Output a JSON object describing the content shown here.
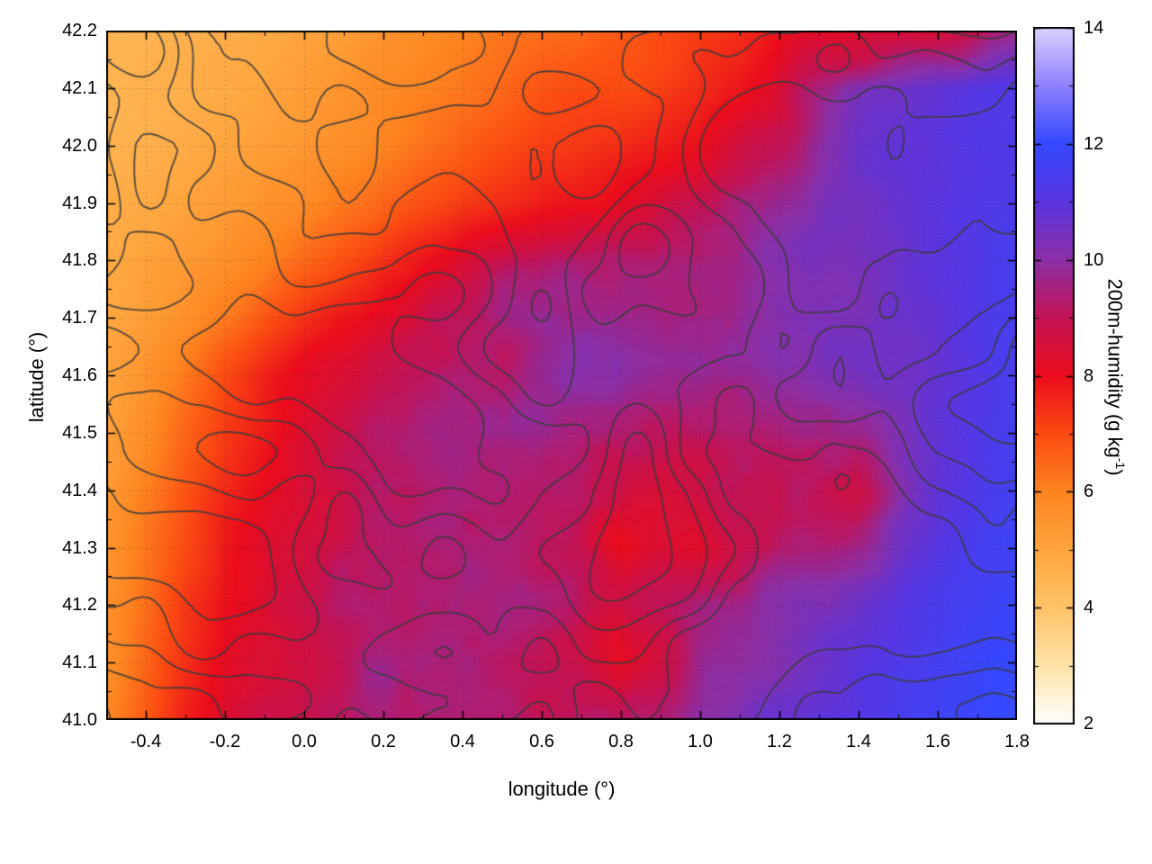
{
  "chart_data": {
    "type": "heatmap",
    "title": "",
    "xlabel": "longitude (°)",
    "ylabel": "latitude (°)",
    "colorbar_label_prefix": "200m-humidity (g kg",
    "colorbar_label_sup": "-1",
    "colorbar_label_suffix": ")",
    "x_range": [
      -0.5,
      1.8
    ],
    "y_range": [
      41.0,
      42.2
    ],
    "x_ticks": [
      -0.4,
      -0.2,
      0.0,
      0.2,
      0.4,
      0.6,
      0.8,
      1.0,
      1.2,
      1.4,
      1.6,
      1.8
    ],
    "y_ticks": [
      41.0,
      41.1,
      41.2,
      41.3,
      41.4,
      41.5,
      41.6,
      41.7,
      41.8,
      41.9,
      42.0,
      42.1,
      42.2
    ],
    "grid_lines": "dotted",
    "legend": "colorbar-right",
    "colorbar_range": [
      2,
      14
    ],
    "colorbar_ticks": [
      2,
      4,
      6,
      8,
      10,
      12,
      14
    ],
    "palette": [
      {
        "v": 2,
        "c": "#ffffff"
      },
      {
        "v": 3,
        "c": "#ffe3a8"
      },
      {
        "v": 4,
        "c": "#ffc368"
      },
      {
        "v": 5,
        "c": "#ffa53e"
      },
      {
        "v": 6,
        "c": "#fd8420"
      },
      {
        "v": 7,
        "c": "#fb4b12"
      },
      {
        "v": 8,
        "c": "#ea0c1d"
      },
      {
        "v": 9,
        "c": "#c31355"
      },
      {
        "v": 10,
        "c": "#8b2fa6"
      },
      {
        "v": 11,
        "c": "#5a35e0"
      },
      {
        "v": 12,
        "c": "#3548ff"
      },
      {
        "v": 13,
        "c": "#8f80ff"
      },
      {
        "v": 14,
        "c": "#dcd2ff"
      }
    ],
    "contours": {
      "color": "#3b3b3b",
      "levels": [
        0.34,
        0.42,
        0.5,
        0.58,
        0.66
      ],
      "description": "terrain elevation contour overlay"
    },
    "grid": {
      "nx": 24,
      "ny": 13,
      "x0": -0.5,
      "x1": 1.8,
      "y_top": 42.2,
      "y_bottom": 41.0,
      "units": "g kg-1",
      "values": [
        [
          4.5,
          4.5,
          4.6,
          4.7,
          4.8,
          5.0,
          5.2,
          5.5,
          5.8,
          6.0,
          6.2,
          6.4,
          6.5,
          6.8,
          7.0,
          7.2,
          7.5,
          7.8,
          8.2,
          8.4,
          8.5,
          8.5,
          8.8,
          9.5
        ],
        [
          4.5,
          4.6,
          4.7,
          4.8,
          5.0,
          5.2,
          5.5,
          5.8,
          6.0,
          6.2,
          6.5,
          6.8,
          7.0,
          7.0,
          7.2,
          7.5,
          7.8,
          8.4,
          9.4,
          10.2,
          10.6,
          10.9,
          11.1,
          11.2
        ],
        [
          4.6,
          4.7,
          4.8,
          5.0,
          5.2,
          5.4,
          5.7,
          6.0,
          6.3,
          6.6,
          7.0,
          7.2,
          7.3,
          7.5,
          7.8,
          8.0,
          8.5,
          9.3,
          10.0,
          10.5,
          10.8,
          11.0,
          11.2,
          11.3
        ],
        [
          4.7,
          4.8,
          5.0,
          5.2,
          5.5,
          5.8,
          6.2,
          6.6,
          7.0,
          7.3,
          7.6,
          7.8,
          8.0,
          8.2,
          8.5,
          8.8,
          9.2,
          9.8,
          10.3,
          10.6,
          10.8,
          11.0,
          11.2,
          11.4
        ],
        [
          4.8,
          5.0,
          5.3,
          5.6,
          6.0,
          6.5,
          7.0,
          7.5,
          7.9,
          8.3,
          8.7,
          9.0,
          9.2,
          9.4,
          9.5,
          9.6,
          9.8,
          10.0,
          10.3,
          10.5,
          10.7,
          11.0,
          11.2,
          11.5
        ],
        [
          4.9,
          5.2,
          5.6,
          6.2,
          6.8,
          7.4,
          7.9,
          8.4,
          8.8,
          9.2,
          9.5,
          9.7,
          9.8,
          9.8,
          9.8,
          9.8,
          9.9,
          10.0,
          10.2,
          10.4,
          10.6,
          10.9,
          11.2,
          11.5
        ],
        [
          5.0,
          5.5,
          6.2,
          7.0,
          7.6,
          8.1,
          8.5,
          9.0,
          9.3,
          9.5,
          9.7,
          9.8,
          9.9,
          9.9,
          9.9,
          9.9,
          10.0,
          10.0,
          10.1,
          10.3,
          10.5,
          10.8,
          11.2,
          11.5
        ],
        [
          5.2,
          5.8,
          6.6,
          7.3,
          7.8,
          8.2,
          8.6,
          9.0,
          9.3,
          9.5,
          9.6,
          9.7,
          9.7,
          9.6,
          9.5,
          9.4,
          9.5,
          9.7,
          9.8,
          10.0,
          10.3,
          10.7,
          11.2,
          11.6
        ],
        [
          5.3,
          6.0,
          6.8,
          7.5,
          8.0,
          8.4,
          8.7,
          9.0,
          9.2,
          9.4,
          9.5,
          9.4,
          9.2,
          8.8,
          8.4,
          8.6,
          9.0,
          9.3,
          9.2,
          9.0,
          10.2,
          10.8,
          11.3,
          11.7
        ],
        [
          5.4,
          6.2,
          7.0,
          7.8,
          8.2,
          8.6,
          8.9,
          9.1,
          9.3,
          9.4,
          9.4,
          9.2,
          8.8,
          7.9,
          8.3,
          8.1,
          8.6,
          9.1,
          9.4,
          9.7,
          10.4,
          11.0,
          11.5,
          11.8
        ],
        [
          5.5,
          6.4,
          7.3,
          8.0,
          8.4,
          8.7,
          9.0,
          9.2,
          9.3,
          9.4,
          9.3,
          9.2,
          9.0,
          8.6,
          8.8,
          9.2,
          9.5,
          9.8,
          10.2,
          10.6,
          11.0,
          11.3,
          11.6,
          11.9
        ],
        [
          5.6,
          6.6,
          7.5,
          8.2,
          8.6,
          8.9,
          9.1,
          9.3,
          9.4,
          9.4,
          9.3,
          9.2,
          9.0,
          8.2,
          9.0,
          9.5,
          9.8,
          10.2,
          10.6,
          11.0,
          11.3,
          11.6,
          11.8,
          12.0
        ],
        [
          5.8,
          6.8,
          7.7,
          8.4,
          8.8,
          9.0,
          9.2,
          9.4,
          9.5,
          9.4,
          9.3,
          9.2,
          9.5,
          9.3,
          9.6,
          9.9,
          10.2,
          10.5,
          10.9,
          11.2,
          11.5,
          11.7,
          11.9,
          12.1
        ]
      ]
    }
  }
}
